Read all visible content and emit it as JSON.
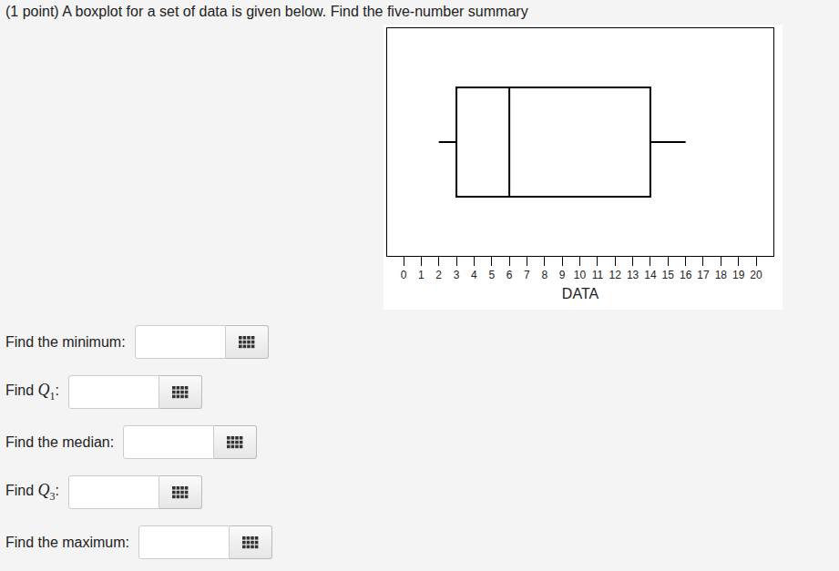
{
  "question": "(1 point) A boxplot for a set of data is given below. Find the five-number summary",
  "chart_data": {
    "type": "box",
    "orientation": "horizontal",
    "xlabel": "DATA",
    "min": 2,
    "q1": 3,
    "median": 6,
    "q3": 14,
    "max": 16,
    "xlim": [
      -0.93,
      20.98
    ],
    "xticks": [
      0,
      1,
      2,
      3,
      4,
      5,
      6,
      7,
      8,
      9,
      10,
      11,
      12,
      13,
      14,
      15,
      16,
      17,
      18,
      19,
      20
    ],
    "tick_labels": "x",
    "grid": false
  },
  "fields": [
    {
      "text": "Find the minimum:"
    },
    {
      "text": "Find ",
      "var": "Q",
      "sub": "1",
      "end": ":"
    },
    {
      "text": "Find the median:"
    },
    {
      "text": "Find ",
      "var": "Q",
      "sub": "3",
      "end": ":"
    },
    {
      "text": "Find the maximum:"
    }
  ]
}
